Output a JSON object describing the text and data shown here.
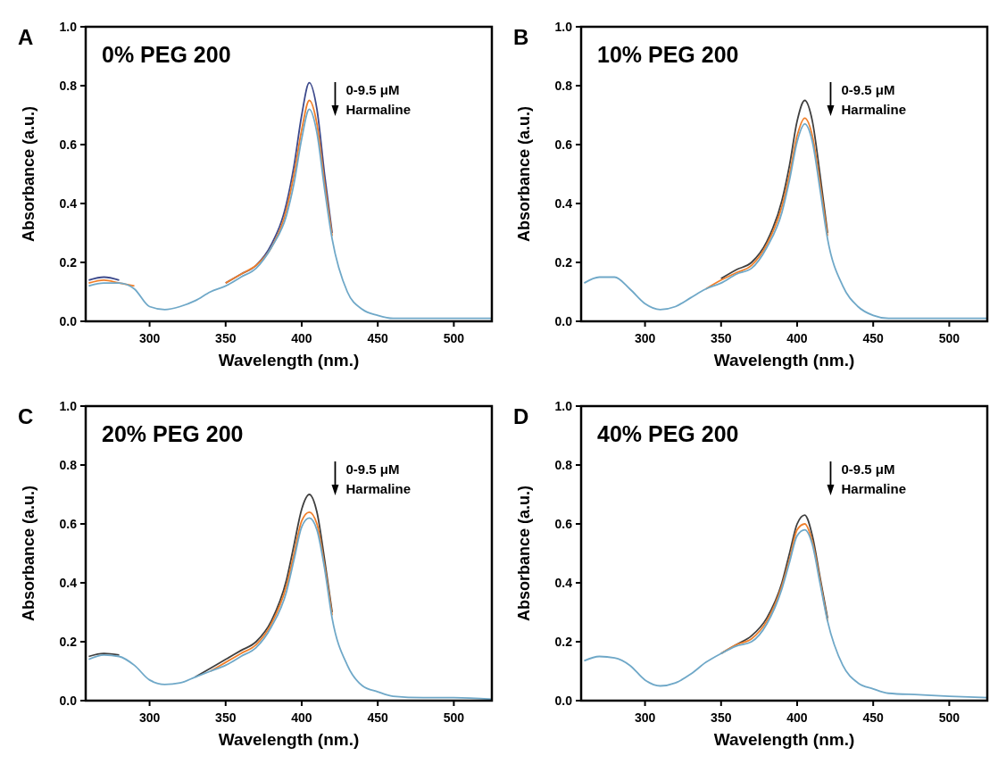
{
  "chart_data": [
    {
      "type": "line",
      "title": "0% PEG 200",
      "xlabel": "Wavelength (nm.)",
      "ylabel": "Absorbance  (a.u.)",
      "annotations": [
        "A",
        "0-9.5 μM",
        "Harmaline"
      ],
      "xlim": [
        258,
        525
      ],
      "xticks": [
        300,
        350,
        400,
        450,
        500
      ],
      "ylim": [
        0,
        1
      ],
      "yticks": [
        {
          "value": 0,
          "label": "0.0"
        },
        {
          "value": 0.2,
          "label": "0.2"
        },
        {
          "value": 0.4,
          "label": "0.4"
        },
        {
          "value": 0.6,
          "label": "0.6"
        },
        {
          "value": 0.8,
          "label": "0.8"
        },
        {
          "value": 1,
          "label": "1.0"
        }
      ],
      "x": [
        260,
        270,
        280,
        290,
        300,
        310,
        320,
        330,
        340,
        350,
        360,
        370,
        380,
        390,
        395,
        400,
        405,
        410,
        415,
        420,
        430,
        440,
        450,
        460,
        480,
        500,
        525
      ],
      "series": [
        {
          "color": "#3d4a8c",
          "values": [
            0.14,
            0.15,
            0.14,
            null,
            null,
            null,
            null,
            null,
            null,
            0.13,
            0.16,
            0.19,
            0.26,
            0.4,
            0.53,
            0.7,
            0.81,
            0.72,
            0.5,
            0.3,
            null,
            null,
            null,
            null,
            null,
            null,
            null
          ]
        },
        {
          "color": "#f07f2a",
          "values": [
            0.13,
            0.14,
            0.13,
            0.12,
            null,
            null,
            null,
            null,
            null,
            0.13,
            0.16,
            0.19,
            0.25,
            0.38,
            0.5,
            0.65,
            0.75,
            0.67,
            0.47,
            0.29,
            null,
            null,
            null,
            null,
            null,
            null,
            null
          ]
        },
        {
          "color": "#6fa8c8",
          "values": [
            0.12,
            0.13,
            0.13,
            0.11,
            0.05,
            0.04,
            0.05,
            0.07,
            0.1,
            0.12,
            0.15,
            0.18,
            0.25,
            0.36,
            0.47,
            0.62,
            0.72,
            0.64,
            0.45,
            0.28,
            0.1,
            0.04,
            0.02,
            0.01,
            0.01,
            0.01,
            0.01
          ]
        }
      ]
    },
    {
      "type": "line",
      "title": "10% PEG 200",
      "xlabel": "Wavelength (nm.)",
      "ylabel": "Absorbance  (a.u.)",
      "annotations": [
        "B",
        "0-9.5 μM",
        "Harmaline"
      ],
      "xlim": [
        258,
        525
      ],
      "xticks": [
        300,
        350,
        400,
        450,
        500
      ],
      "ylim": [
        0,
        1
      ],
      "yticks": [
        {
          "value": 0,
          "label": "0.0"
        },
        {
          "value": 0.2,
          "label": "0.2"
        },
        {
          "value": 0.4,
          "label": "0.4"
        },
        {
          "value": 0.6,
          "label": "0.6"
        },
        {
          "value": 0.8,
          "label": "0.8"
        },
        {
          "value": 1,
          "label": "1.0"
        }
      ],
      "x": [
        260,
        270,
        280,
        290,
        300,
        310,
        320,
        330,
        340,
        350,
        360,
        370,
        380,
        390,
        395,
        400,
        405,
        410,
        415,
        420,
        430,
        440,
        450,
        460,
        480,
        500,
        525
      ],
      "series": [
        {
          "color": "#404040",
          "values": [
            null,
            null,
            null,
            null,
            null,
            null,
            null,
            null,
            null,
            0.145,
            0.175,
            0.2,
            0.27,
            0.41,
            0.53,
            0.68,
            0.75,
            0.68,
            0.5,
            0.3,
            null,
            null,
            null,
            null,
            null,
            null,
            null
          ]
        },
        {
          "color": "#f07f2a",
          "values": [
            null,
            null,
            null,
            null,
            null,
            null,
            null,
            null,
            0.11,
            0.14,
            0.165,
            0.19,
            0.26,
            0.39,
            0.5,
            0.63,
            0.69,
            0.63,
            0.47,
            0.29,
            null,
            null,
            null,
            null,
            null,
            null,
            null
          ]
        },
        {
          "color": "#6fa8c8",
          "values": [
            0.13,
            0.15,
            0.15,
            0.11,
            0.06,
            0.04,
            0.05,
            0.08,
            0.11,
            0.13,
            0.16,
            0.18,
            0.25,
            0.37,
            0.48,
            0.61,
            0.67,
            0.61,
            0.45,
            0.28,
            0.12,
            0.05,
            0.02,
            0.01,
            0.01,
            0.01,
            0.01
          ]
        }
      ]
    },
    {
      "type": "line",
      "title": "20% PEG 200",
      "xlabel": "Wavelength (nm.)",
      "ylabel": "Absorbance  (a.u.)",
      "annotations": [
        "C",
        "0-9.5 μM",
        "Harmaline"
      ],
      "xlim": [
        258,
        525
      ],
      "xticks": [
        300,
        350,
        400,
        450,
        500
      ],
      "ylim": [
        0,
        1
      ],
      "yticks": [
        {
          "value": 0,
          "label": "0.0"
        },
        {
          "value": 0.2,
          "label": "0.2"
        },
        {
          "value": 0.4,
          "label": "0.4"
        },
        {
          "value": 0.6,
          "label": "0.6"
        },
        {
          "value": 0.8,
          "label": "0.8"
        },
        {
          "value": 1,
          "label": "1.0"
        }
      ],
      "x": [
        260,
        270,
        280,
        290,
        300,
        310,
        320,
        330,
        340,
        350,
        360,
        370,
        380,
        390,
        395,
        400,
        405,
        410,
        415,
        420,
        430,
        440,
        450,
        460,
        480,
        500,
        525
      ],
      "series": [
        {
          "color": "#404040",
          "values": [
            0.15,
            0.16,
            0.155,
            null,
            null,
            null,
            null,
            0.08,
            0.11,
            0.14,
            0.17,
            0.2,
            0.27,
            0.41,
            0.53,
            0.65,
            0.7,
            0.64,
            0.48,
            0.3,
            null,
            null,
            null,
            null,
            null,
            null,
            null
          ]
        },
        {
          "color": "#f07f2a",
          "values": [
            null,
            null,
            null,
            null,
            null,
            null,
            null,
            null,
            0.1,
            0.13,
            0.16,
            0.19,
            0.26,
            0.39,
            0.5,
            0.61,
            0.64,
            0.6,
            0.46,
            0.29,
            null,
            null,
            null,
            null,
            null,
            null,
            null
          ]
        },
        {
          "color": "#6fa8c8",
          "values": [
            0.14,
            0.155,
            0.15,
            0.12,
            0.07,
            0.055,
            0.06,
            0.08,
            0.1,
            0.12,
            0.15,
            0.18,
            0.25,
            0.37,
            0.48,
            0.59,
            0.62,
            0.58,
            0.45,
            0.28,
            0.12,
            0.05,
            0.03,
            0.015,
            0.01,
            0.01,
            0.005
          ]
        }
      ]
    },
    {
      "type": "line",
      "title": "40% PEG 200",
      "xlabel": "Wavelength (nm.)",
      "ylabel": "Absorbance  (a.u.)",
      "annotations": [
        "D",
        "0-9.5 μM",
        "Harmaline"
      ],
      "xlim": [
        258,
        525
      ],
      "xticks": [
        300,
        350,
        400,
        450,
        500
      ],
      "ylim": [
        0,
        1
      ],
      "yticks": [
        {
          "value": 0,
          "label": "0.0"
        },
        {
          "value": 0.2,
          "label": "0.2"
        },
        {
          "value": 0.4,
          "label": "0.4"
        },
        {
          "value": 0.6,
          "label": "0.6"
        },
        {
          "value": 0.8,
          "label": "0.8"
        },
        {
          "value": 1,
          "label": "1.0"
        }
      ],
      "x": [
        260,
        270,
        280,
        290,
        300,
        310,
        320,
        330,
        340,
        350,
        360,
        370,
        380,
        390,
        395,
        400,
        405,
        410,
        415,
        420,
        430,
        440,
        450,
        460,
        480,
        500,
        525
      ],
      "series": [
        {
          "color": "#404040",
          "values": [
            null,
            null,
            null,
            null,
            null,
            null,
            null,
            null,
            null,
            0.16,
            0.19,
            0.22,
            0.28,
            0.4,
            0.5,
            0.6,
            0.63,
            0.56,
            0.42,
            0.28,
            null,
            null,
            null,
            null,
            null,
            null,
            null
          ]
        },
        {
          "color": "#f07f2a",
          "values": [
            null,
            null,
            null,
            null,
            null,
            null,
            null,
            null,
            null,
            0.16,
            0.19,
            0.21,
            0.27,
            0.39,
            0.48,
            0.58,
            0.6,
            0.54,
            0.41,
            0.27,
            null,
            null,
            null,
            null,
            null,
            null,
            null
          ]
        },
        {
          "color": "#6fa8c8",
          "values": [
            0.135,
            0.15,
            0.145,
            0.12,
            0.07,
            0.05,
            0.06,
            0.09,
            0.13,
            0.16,
            0.185,
            0.2,
            0.26,
            0.38,
            0.47,
            0.56,
            0.58,
            0.53,
            0.4,
            0.27,
            0.12,
            0.06,
            0.04,
            0.025,
            0.02,
            0.015,
            0.01
          ]
        }
      ]
    }
  ]
}
